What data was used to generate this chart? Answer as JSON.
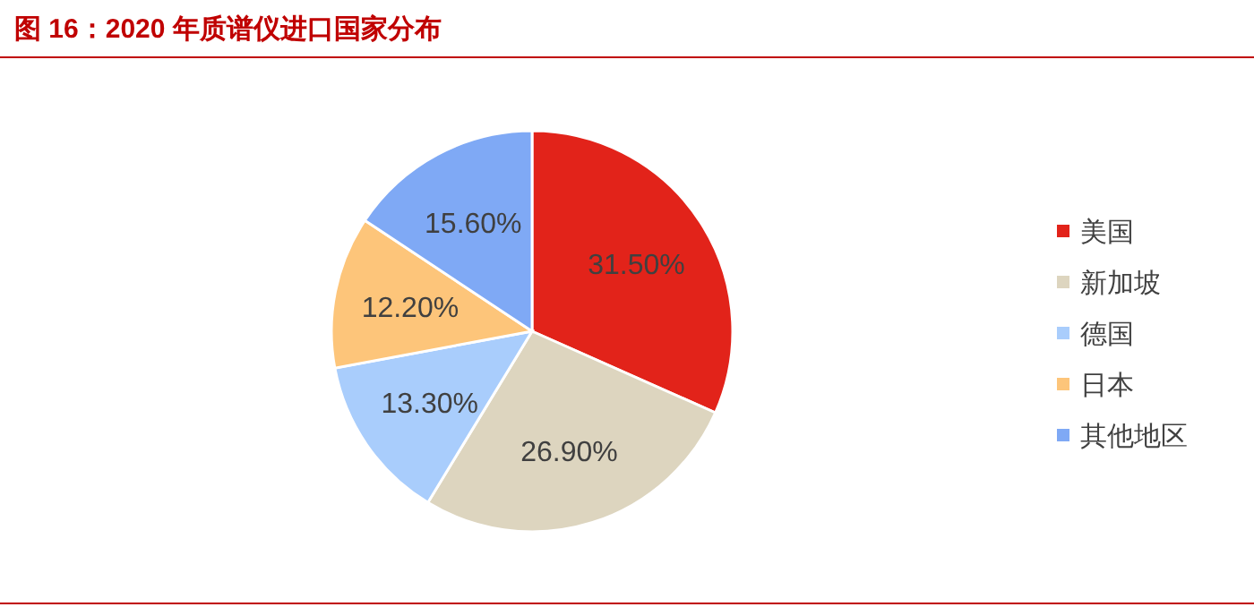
{
  "chart_data": {
    "type": "pie",
    "title": "图 16：2020 年质谱仪进口国家分布",
    "categories": [
      "美国",
      "新加坡",
      "德国",
      "日本",
      "其他地区"
    ],
    "values": [
      31.5,
      26.9,
      13.3,
      12.2,
      15.6
    ],
    "value_labels": [
      "31.50%",
      "26.90%",
      "13.30%",
      "12.20%",
      "15.60%"
    ],
    "colors": [
      "#e2231a",
      "#ddd5bf",
      "#a9cdfc",
      "#fdc57a",
      "#7fa9f5"
    ],
    "legend": "right"
  }
}
